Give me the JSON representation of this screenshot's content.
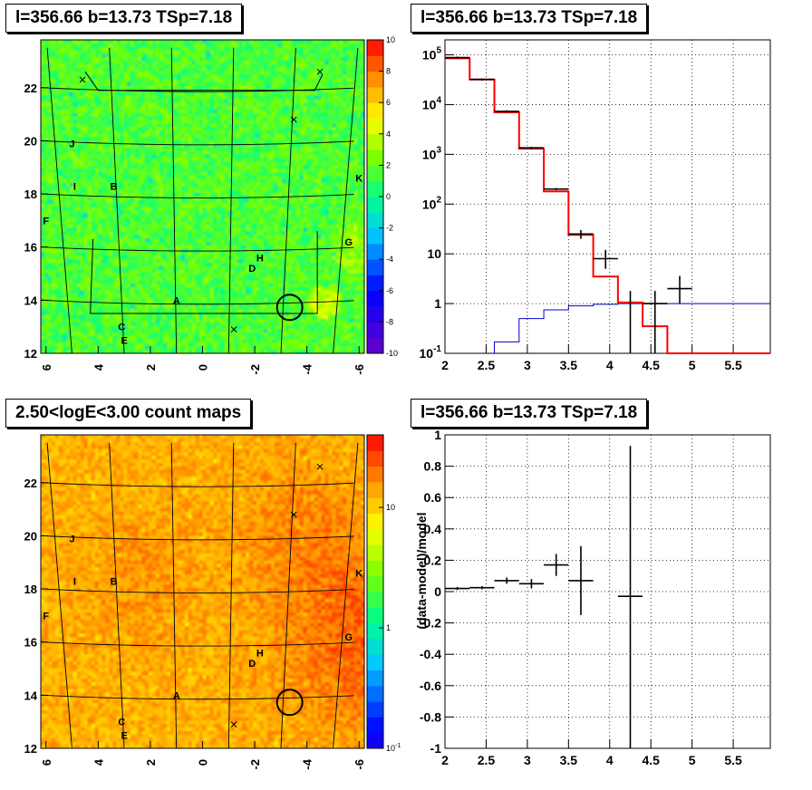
{
  "panels": {
    "map_top_title": "l=356.66 b=13.73 TSp=7.18",
    "spectrum_title": "l=356.66 b=13.73 TSp=7.18",
    "map_bottom_title": "2.50<logE<3.00 count maps",
    "residual_title": "l=356.66 b=13.73 TSp=7.18"
  },
  "chart_data": [
    {
      "type": "heatmap",
      "title": "l=356.66 b=13.73 TSp=7.18",
      "xlabel": "",
      "ylabel": "",
      "x_tick_labels": [
        "6",
        "4",
        "2",
        "0",
        "-2",
        "-4",
        "-6"
      ],
      "y_tick_labels": [
        "12",
        "14",
        "16",
        "18",
        "20",
        "22"
      ],
      "xlim": [
        6.2,
        -6.2
      ],
      "ylim": [
        12,
        23.8
      ],
      "colorbar": {
        "scale": "linear",
        "range": [
          -10,
          10
        ],
        "tick_labels": [
          "-10",
          "-8",
          "-6",
          "-4",
          "-2",
          "0",
          "2",
          "4",
          "6",
          "8",
          "10"
        ]
      },
      "source_labels": [
        {
          "name": "J",
          "l": 5.0,
          "b": 19.9
        },
        {
          "name": "I",
          "l": 4.9,
          "b": 18.3
        },
        {
          "name": "B",
          "l": 3.4,
          "b": 18.3
        },
        {
          "name": "F",
          "l": 6.0,
          "b": 17.0
        },
        {
          "name": "K",
          "l": -6.0,
          "b": 18.6
        },
        {
          "name": "G",
          "l": -5.6,
          "b": 16.2
        },
        {
          "name": "H",
          "l": -2.2,
          "b": 15.6
        },
        {
          "name": "D",
          "l": -1.9,
          "b": 15.2
        },
        {
          "name": "A",
          "l": 1.0,
          "b": 14.0
        },
        {
          "name": "C",
          "l": 3.1,
          "b": 13.0
        },
        {
          "name": "E",
          "l": 3.0,
          "b": 12.5
        }
      ]
    },
    {
      "type": "line",
      "title": "l=356.66 b=13.73 TSp=7.18",
      "xlabel": "",
      "ylabel": "",
      "xlim": [
        2,
        5.95
      ],
      "ylim": [
        0.1,
        200000
      ],
      "y_scale": "log",
      "grid": true,
      "x_tick_labels": [
        "2",
        "2.5",
        "3",
        "3.5",
        "4",
        "4.5",
        "5",
        "5.5"
      ],
      "y_tick_labels": [
        "10^-1",
        "1",
        "10",
        "10^2",
        "10^3",
        "10^4",
        "10^5"
      ],
      "series": [
        {
          "role": "model-total",
          "color": "#ff0000",
          "bins": [
            2,
            2.3,
            2.6,
            2.9,
            3.2,
            3.5,
            3.8,
            4.1,
            4.4,
            4.7,
            5.0,
            5.95
          ],
          "values": [
            85000,
            32000,
            7000,
            1300,
            180,
            24,
            3.5,
            1.05,
            0.35,
            0.1,
            0.1
          ]
        },
        {
          "role": "data",
          "color": "#000000",
          "points": [
            {
              "x": 2.15,
              "y": 88000,
              "xerr": 0.15
            },
            {
              "x": 2.45,
              "y": 32000,
              "xerr": 0.15
            },
            {
              "x": 2.75,
              "y": 7300,
              "xerr": 0.15
            },
            {
              "x": 3.05,
              "y": 1350,
              "xerr": 0.15
            },
            {
              "x": 3.35,
              "y": 200,
              "xerr": 0.15
            },
            {
              "x": 3.65,
              "y": 25,
              "xerr": 0.15,
              "ylo": 20,
              "yhi": 30
            },
            {
              "x": 3.95,
              "y": 8,
              "xerr": 0.15,
              "ylo": 5,
              "yhi": 12
            },
            {
              "x": 4.25,
              "y": 0.1,
              "xerr": 0,
              "ylo": 0.1,
              "yhi": 1.8
            },
            {
              "x": 4.55,
              "y": 1.0,
              "xerr": 0.15,
              "ylo": 0.1,
              "yhi": 1.8
            },
            {
              "x": 4.85,
              "y": 2.0,
              "xerr": 0.15,
              "ylo": 1.0,
              "yhi": 3.6
            }
          ]
        },
        {
          "role": "background",
          "color": "#0000cc",
          "bins": [
            2.6,
            2.9,
            3.2,
            3.5,
            3.8,
            4.1,
            4.4,
            4.7,
            5.0,
            5.95
          ],
          "values": [
            0.17,
            0.5,
            0.75,
            0.9,
            0.97,
            1.0,
            1.0,
            1.0,
            1.0
          ]
        }
      ]
    },
    {
      "type": "heatmap",
      "title": "2.50<logE<3.00 count maps",
      "xlabel": "",
      "ylabel": "",
      "x_tick_labels": [
        "6",
        "4",
        "2",
        "0",
        "-2",
        "-4",
        "-6"
      ],
      "y_tick_labels": [
        "12",
        "14",
        "16",
        "18",
        "20",
        "22"
      ],
      "xlim": [
        6.2,
        -6.2
      ],
      "ylim": [
        12,
        23.8
      ],
      "colorbar": {
        "scale": "log",
        "range": [
          0.1,
          40
        ],
        "tick_labels": [
          "10^-1",
          "1",
          "10"
        ]
      }
    },
    {
      "type": "scatter",
      "title": "l=356.66 b=13.73 TSp=7.18",
      "xlabel": "",
      "ylabel": "(data-model)/model",
      "xlim": [
        2,
        5.95
      ],
      "ylim": [
        -1,
        1
      ],
      "grid": true,
      "x_tick_labels": [
        "2",
        "2.5",
        "3",
        "3.5",
        "4",
        "4.5",
        "5",
        "5.5"
      ],
      "y_tick_labels": [
        "-1",
        "-0.8",
        "-0.6",
        "-0.4",
        "-0.2",
        "0",
        "0.2",
        "0.4",
        "0.6",
        "0.8",
        "1"
      ],
      "series": [
        {
          "role": "residual",
          "color": "#000000",
          "points": [
            {
              "x": 2.15,
              "y": 0.02,
              "xerr": 0.15,
              "yerr": 0.01
            },
            {
              "x": 2.45,
              "y": 0.025,
              "xerr": 0.15,
              "yerr": 0.01
            },
            {
              "x": 2.75,
              "y": 0.07,
              "xerr": 0.15,
              "yerr": 0.02
            },
            {
              "x": 3.05,
              "y": 0.05,
              "xerr": 0.15,
              "yerr": 0.03
            },
            {
              "x": 3.35,
              "y": 0.17,
              "xerr": 0.15,
              "yerr": 0.07
            },
            {
              "x": 3.65,
              "y": 0.07,
              "xerr": 0.15,
              "ylo": -0.15,
              "yhi": 0.29
            },
            {
              "x": 4.25,
              "y": -0.03,
              "xerr": 0.15,
              "ylo": -1.0,
              "yhi": 0.93
            }
          ]
        }
      ]
    }
  ]
}
